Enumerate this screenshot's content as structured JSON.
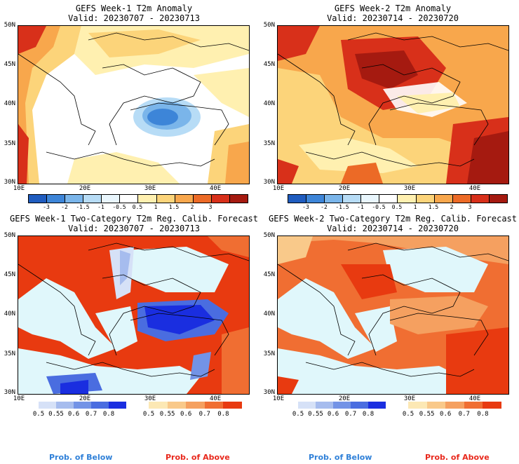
{
  "panels": {
    "p1": {
      "title1": "GEFS Week-1 T2m Anomaly",
      "title2": "Valid: 20230707 - 20230713"
    },
    "p2": {
      "title1": "GEFS Week-2 T2m Anomaly",
      "title2": "Valid: 20230714 - 20230720"
    },
    "p3": {
      "title1": "GEFS Week-1 Two-Category T2m Reg. Calib. Forecast",
      "title2": "Valid: 20230707 - 20230713"
    },
    "p4": {
      "title1": "GEFS Week-2 Two-Category T2m Reg. Calib. Forecast",
      "title2": "Valid: 20230714 - 20230720"
    }
  },
  "axes": {
    "lat": [
      "50N",
      "45N",
      "40N",
      "35N",
      "30N"
    ],
    "lon": [
      "10E",
      "20E",
      "30E",
      "40E"
    ]
  },
  "anomaly_colorbar": {
    "labels": [
      "-3",
      "-2",
      "-1.5",
      "-1",
      "-0.5",
      "0.5",
      "1",
      "1.5",
      "2",
      "3"
    ],
    "colors": [
      "#1f5cbf",
      "#3d85d8",
      "#7ab5ea",
      "#b7dcf6",
      "#e9f6fd",
      "#ffffff",
      "#fff0b0",
      "#fcd47a",
      "#f8a74c",
      "#ec6a26",
      "#d8301a",
      "#a51a10"
    ]
  },
  "prob_below": {
    "labels": [
      "0.5",
      "0.55",
      "0.6",
      "0.7",
      "0.8"
    ],
    "colors": [
      "#d6e1f7",
      "#a6bcee",
      "#7393e6",
      "#4a6de0",
      "#1a2ee0"
    ]
  },
  "prob_above": {
    "labels": [
      "0.5",
      "0.55",
      "0.6",
      "0.7",
      "0.8"
    ],
    "colors": [
      "#fce8b4",
      "#f9c98a",
      "#f5a060",
      "#f06e32",
      "#e83a10"
    ]
  },
  "legend": {
    "below": "Prob. of Below",
    "above": "Prob. of Above",
    "below_color": "#2f80d8",
    "above_color": "#e8281c"
  },
  "colors": {
    "sea_probability": "#e0f7fb"
  }
}
